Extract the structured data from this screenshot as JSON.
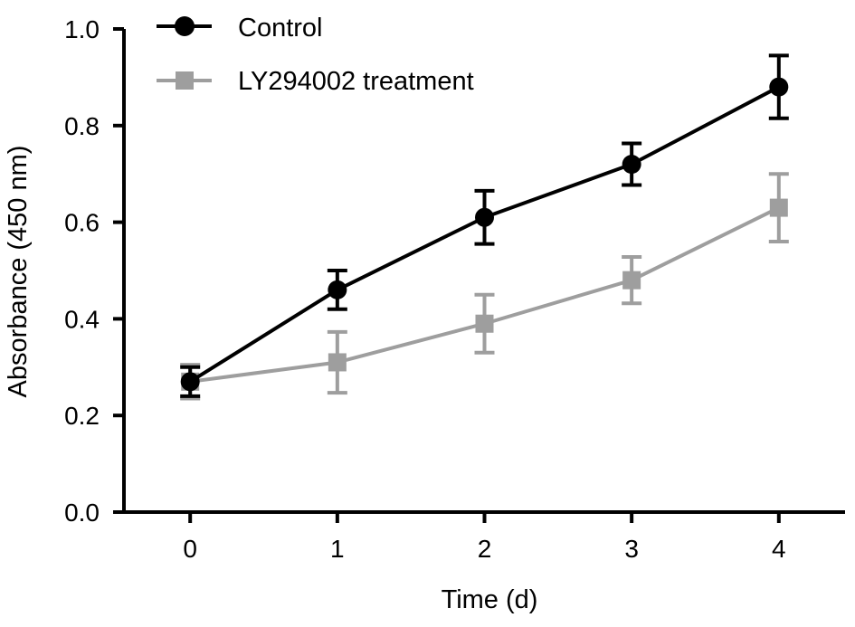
{
  "chart_data": {
    "type": "line",
    "x": [
      0,
      1,
      2,
      3,
      4
    ],
    "xlabel": "Time (d)",
    "ylabel": "Absorbance (450 nm)",
    "xlim": [
      -0.45,
      4.45
    ],
    "ylim": [
      0,
      1.0
    ],
    "xticks": [
      "0",
      "1",
      "2",
      "3",
      "4"
    ],
    "yticks": [
      "0.0",
      "0.2",
      "0.4",
      "0.6",
      "0.8",
      "1.0"
    ],
    "grid": false,
    "legend_position": "top-left",
    "series": [
      {
        "name": "Control",
        "marker": "circle",
        "color": "#000000",
        "values": [
          0.27,
          0.46,
          0.61,
          0.72,
          0.88
        ],
        "error": [
          0.03,
          0.04,
          0.055,
          0.043,
          0.065
        ]
      },
      {
        "name": "LY294002 treatment",
        "marker": "square",
        "color": "#9e9e9e",
        "values": [
          0.27,
          0.31,
          0.39,
          0.48,
          0.63
        ],
        "error": [
          0.035,
          0.063,
          0.06,
          0.048,
          0.07
        ]
      }
    ]
  }
}
